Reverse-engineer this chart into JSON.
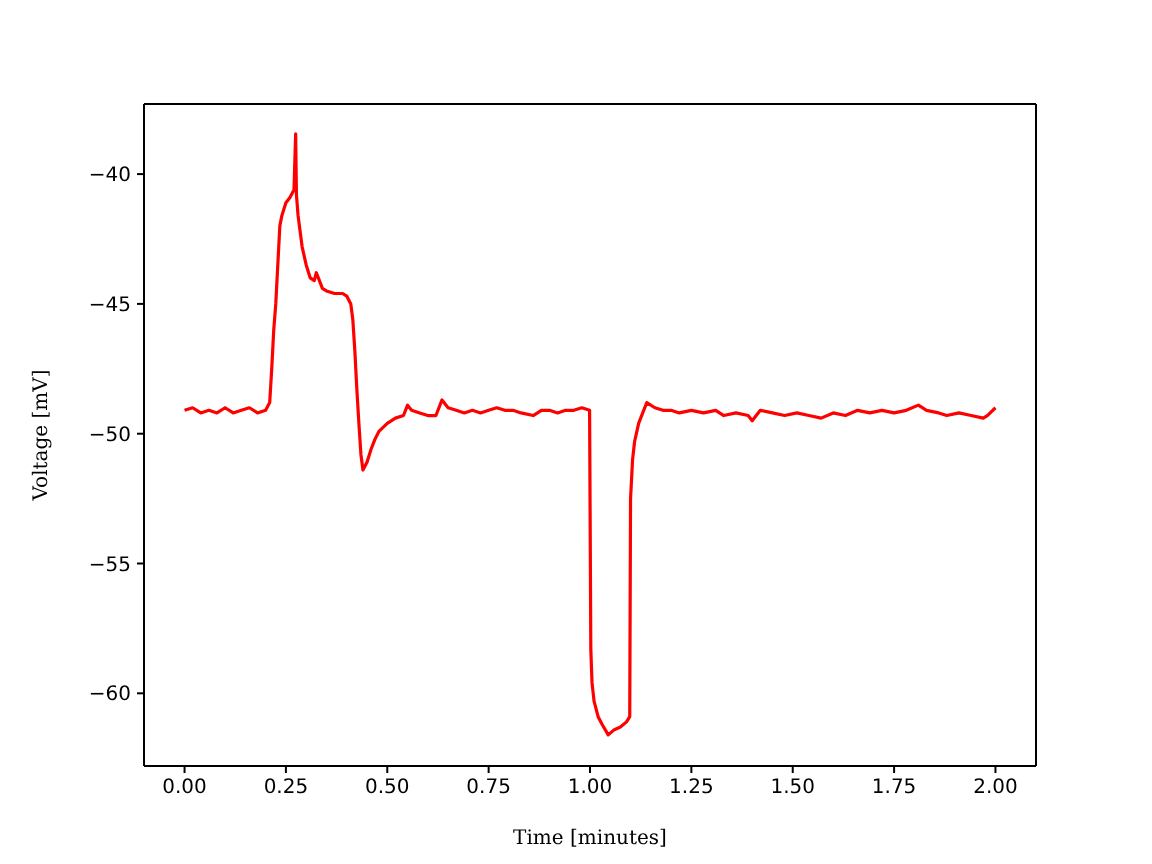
{
  "chart_data": {
    "type": "line",
    "xlabel": "Time [minutes]",
    "ylabel": "Voltage [mV]",
    "xlim": [
      -0.1,
      2.1
    ],
    "ylim": [
      -62.8,
      -37.3
    ],
    "xticks": [
      {
        "value": 0,
        "label": "0.00"
      },
      {
        "value": 0.25,
        "label": "0.25"
      },
      {
        "value": 0.5,
        "label": "0.50"
      },
      {
        "value": 0.75,
        "label": "0.75"
      },
      {
        "value": 1,
        "label": "1.00"
      },
      {
        "value": 1.25,
        "label": "1.25"
      },
      {
        "value": 1.5,
        "label": "1.50"
      },
      {
        "value": 1.75,
        "label": "1.75"
      },
      {
        "value": 2,
        "label": "2.00"
      }
    ],
    "yticks": [
      {
        "value": -60,
        "label": "−60"
      },
      {
        "value": -55,
        "label": "−55"
      },
      {
        "value": -50,
        "label": "−50"
      },
      {
        "value": -45,
        "label": "−45"
      },
      {
        "value": -40,
        "label": "−40"
      }
    ],
    "color": "#ff0000",
    "x": [
      0,
      0.02,
      0.04,
      0.06,
      0.08,
      0.1,
      0.12,
      0.14,
      0.16,
      0.18,
      0.2,
      0.21,
      0.215,
      0.22,
      0.225,
      0.23,
      0.235,
      0.24,
      0.25,
      0.26,
      0.27,
      0.274,
      0.276,
      0.28,
      0.29,
      0.3,
      0.31,
      0.32,
      0.325,
      0.33,
      0.34,
      0.35,
      0.37,
      0.39,
      0.4,
      0.41,
      0.415,
      0.42,
      0.425,
      0.43,
      0.435,
      0.44,
      0.45,
      0.46,
      0.47,
      0.48,
      0.5,
      0.52,
      0.54,
      0.55,
      0.56,
      0.58,
      0.6,
      0.62,
      0.635,
      0.65,
      0.67,
      0.69,
      0.71,
      0.73,
      0.75,
      0.77,
      0.79,
      0.81,
      0.83,
      0.86,
      0.88,
      0.9,
      0.92,
      0.94,
      0.96,
      0.98,
      0.999,
      1.002,
      1.005,
      1.01,
      1.02,
      1.03,
      1.045,
      1.06,
      1.075,
      1.09,
      1.098,
      1.1,
      1.105,
      1.11,
      1.12,
      1.13,
      1.14,
      1.16,
      1.18,
      1.2,
      1.22,
      1.25,
      1.28,
      1.31,
      1.33,
      1.36,
      1.39,
      1.4,
      1.42,
      1.45,
      1.48,
      1.51,
      1.54,
      1.57,
      1.6,
      1.63,
      1.66,
      1.69,
      1.72,
      1.75,
      1.78,
      1.81,
      1.83,
      1.86,
      1.88,
      1.91,
      1.94,
      1.97,
      1.98,
      2
    ],
    "values": [
      -49.1,
      -49,
      -49.2,
      -49.1,
      -49.2,
      -49,
      -49.2,
      -49.1,
      -49,
      -49.2,
      -49.1,
      -48.8,
      -47.5,
      -46,
      -45,
      -43.5,
      -42,
      -41.6,
      -41.1,
      -40.9,
      -40.6,
      -38.45,
      -40.8,
      -41.6,
      -42.8,
      -43.5,
      -44,
      -44.1,
      -43.8,
      -44,
      -44.4,
      -44.5,
      -44.6,
      -44.6,
      -44.7,
      -45,
      -45.6,
      -46.8,
      -48.3,
      -49.6,
      -50.8,
      -51.4,
      -51.1,
      -50.6,
      -50.2,
      -49.9,
      -49.6,
      -49.4,
      -49.3,
      -48.9,
      -49.1,
      -49.2,
      -49.3,
      -49.3,
      -48.7,
      -49,
      -49.1,
      -49.2,
      -49.1,
      -49.2,
      -49.1,
      -49,
      -49.1,
      -49.1,
      -49.2,
      -49.3,
      -49.1,
      -49.1,
      -49.2,
      -49.1,
      -49.1,
      -49,
      -49.1,
      -58.3,
      -59.6,
      -60.3,
      -60.9,
      -61.2,
      -61.6,
      -61.4,
      -61.3,
      -61.1,
      -60.9,
      -52.5,
      -51,
      -50.3,
      -49.6,
      -49.2,
      -48.8,
      -49,
      -49.1,
      -49.1,
      -49.2,
      -49.1,
      -49.2,
      -49.1,
      -49.3,
      -49.2,
      -49.3,
      -49.5,
      -49.1,
      -49.2,
      -49.3,
      -49.2,
      -49.3,
      -49.4,
      -49.2,
      -49.3,
      -49.1,
      -49.2,
      -49.1,
      -49.2,
      -49.1,
      -48.9,
      -49.1,
      -49.2,
      -49.3,
      -49.2,
      -49.3,
      -49.4,
      -49.3,
      -49
    ]
  }
}
